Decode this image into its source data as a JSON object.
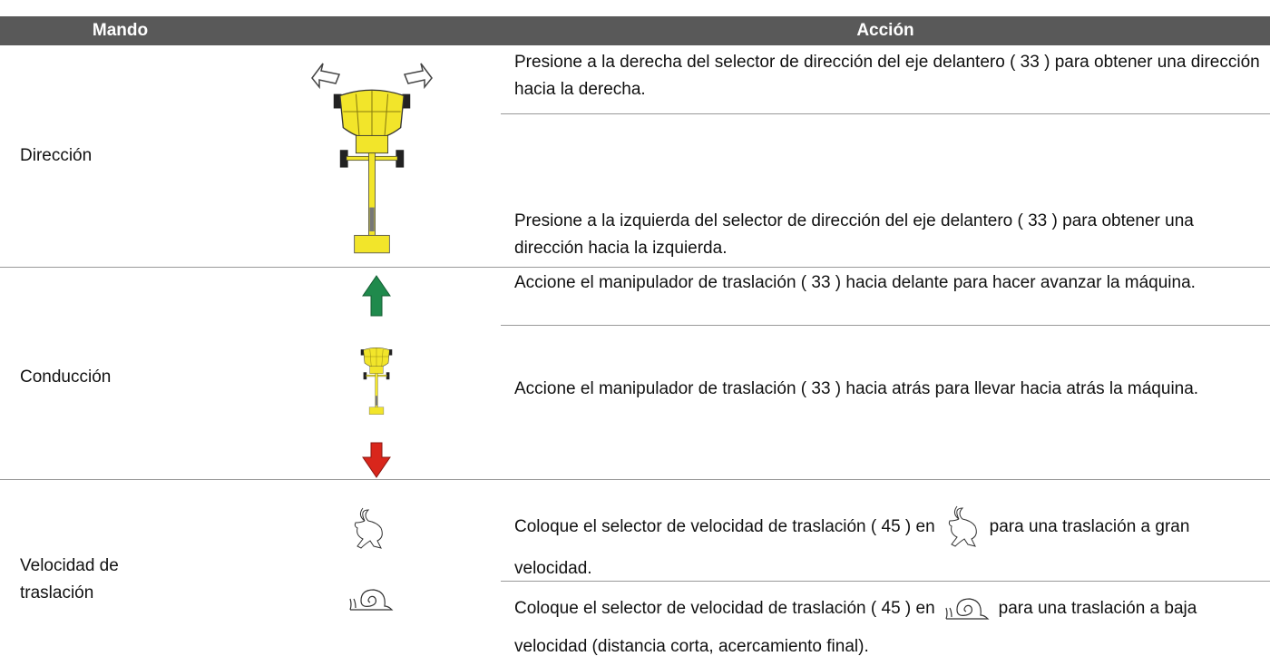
{
  "header": {
    "columns": [
      "Mando",
      "Acción"
    ]
  },
  "rows": [
    {
      "label": "Dirección",
      "actions": [
        "Presione a la derecha del selector de dirección del eje delantero ( 33 ) para obtener una dirección hacia la derecha.",
        "Presione a la izquierda del selector de dirección del eje delantero ( 33 ) para obtener una dirección hacia la izquierda."
      ]
    },
    {
      "label": "Conducción",
      "actions": [
        "Accione el manipulador de traslación ( 33 ) hacia delante para hacer avanzar la máquina.",
        "Accione el manipulador de traslación ( 33 ) hacia atrás para llevar hacia atrás la máquina."
      ]
    },
    {
      "label": "Velocidad de traslación",
      "actions": [
        {
          "before": "Coloque el selector de velocidad de traslación ( 45 ) en",
          "after": "para una traslación a gran velocidad."
        },
        {
          "before": "Coloque el selector de velocidad de traslación ( 45 ) en",
          "after": "para una traslación a baja velocidad (distancia corta, acercamiento final)."
        }
      ]
    }
  ]
}
